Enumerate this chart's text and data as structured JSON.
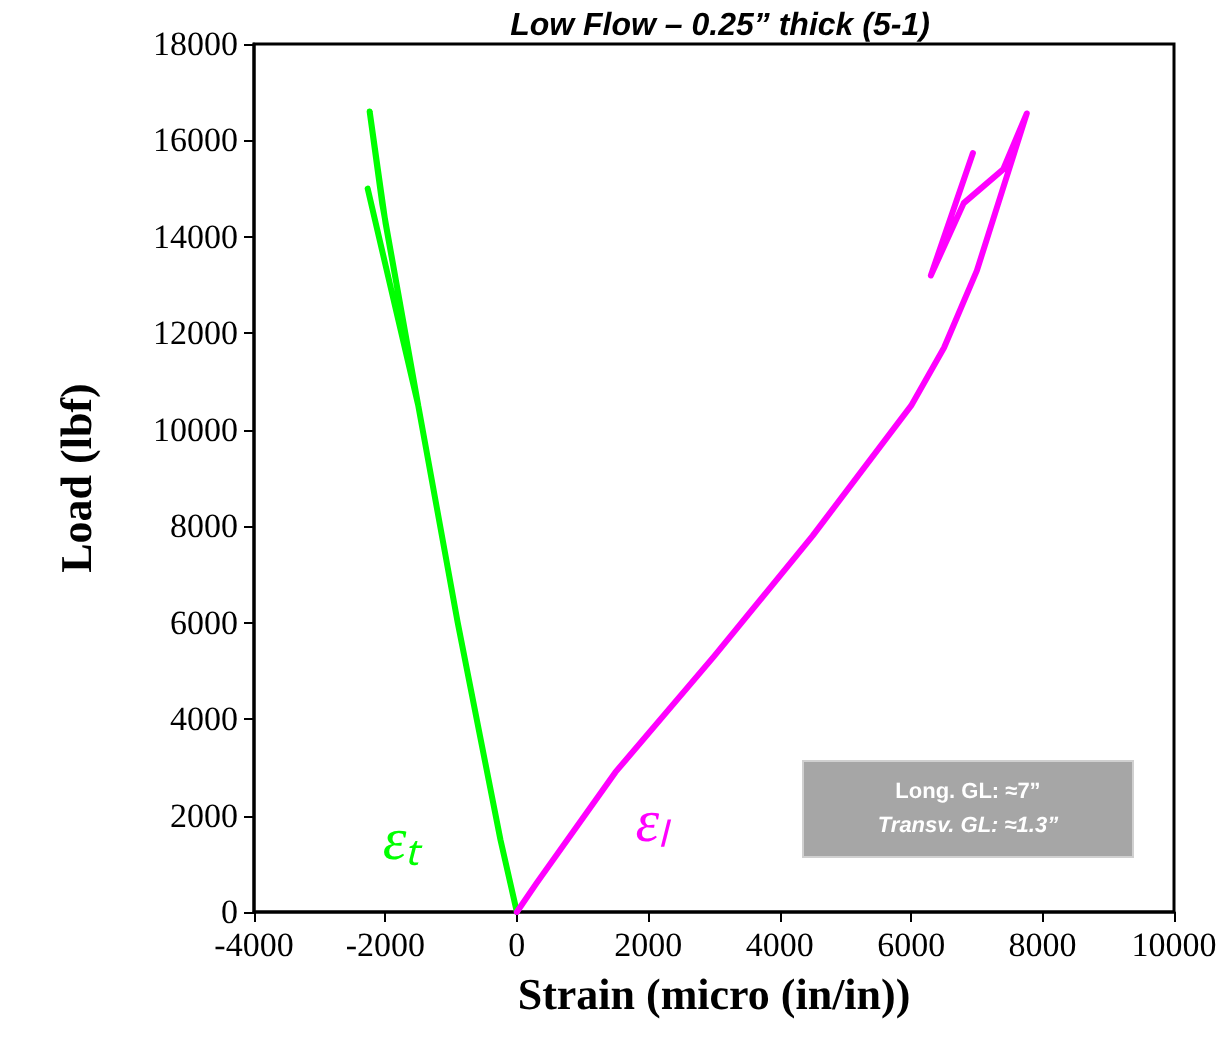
{
  "chart_data": {
    "type": "line",
    "title": "Low Flow – 0.25” thick (5-1)",
    "xlabel": "Strain (micro (in/in))",
    "ylabel": "Load (lbf)",
    "series": [
      {
        "name": "εₜ",
        "color": "#00ff00",
        "x": [
          0,
          -250,
          -900,
          -1500,
          -2000,
          -2240,
          -2050,
          -1500,
          -2270
        ],
        "values": [
          0,
          1500,
          6000,
          10500,
          14300,
          16600,
          14700,
          10500,
          15000
        ]
      },
      {
        "name": "εₗ",
        "color": "#ff00ff",
        "x": [
          0,
          300,
          1500,
          3000,
          4500,
          6000,
          6500,
          7000,
          7760,
          7400,
          6800,
          6300,
          6940
        ],
        "values": [
          0,
          600,
          2900,
          5300,
          7800,
          10500,
          11700,
          13300,
          16560,
          15400,
          14700,
          13200,
          15740
        ]
      }
    ],
    "xlim": [
      -4000,
      10000
    ],
    "xticks": [
      -4000,
      -2000,
      0,
      2000,
      4000,
      6000,
      8000,
      10000
    ],
    "ylim": [
      0,
      18000
    ],
    "yticks": [
      0,
      2000,
      4000,
      6000,
      8000,
      10000,
      12000,
      14000,
      16000,
      18000
    ],
    "annotations": [
      "Long. GL: ≈7”",
      "Transv. GL: ≈1.3”"
    ],
    "grid": false,
    "legend": false,
    "marker": "none",
    "line_style": "solid"
  }
}
